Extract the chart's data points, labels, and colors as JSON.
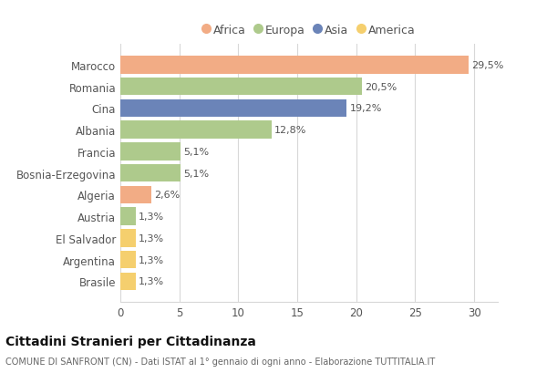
{
  "categories": [
    "Marocco",
    "Romania",
    "Cina",
    "Albania",
    "Francia",
    "Bosnia-Erzegovina",
    "Algeria",
    "Austria",
    "El Salvador",
    "Argentina",
    "Brasile"
  ],
  "values": [
    29.5,
    20.5,
    19.2,
    12.8,
    5.1,
    5.1,
    2.6,
    1.3,
    1.3,
    1.3,
    1.3
  ],
  "labels": [
    "29,5%",
    "20,5%",
    "19,2%",
    "12,8%",
    "5,1%",
    "5,1%",
    "2,6%",
    "1,3%",
    "1,3%",
    "1,3%",
    "1,3%"
  ],
  "continents": [
    "Africa",
    "Europa",
    "Asia",
    "Europa",
    "Europa",
    "Europa",
    "Africa",
    "Europa",
    "America",
    "America",
    "America"
  ],
  "continent_colors": {
    "Africa": "#F2AC85",
    "Europa": "#AECA8C",
    "Asia": "#6B84B8",
    "America": "#F5CF6E"
  },
  "legend_order": [
    "Africa",
    "Europa",
    "Asia",
    "America"
  ],
  "xlim": [
    0,
    32
  ],
  "xticks": [
    0,
    5,
    10,
    15,
    20,
    25,
    30
  ],
  "title": "Cittadini Stranieri per Cittadinanza",
  "subtitle": "COMUNE DI SANFRONT (CN) - Dati ISTAT al 1° gennaio di ogni anno - Elaborazione TUTTITALIA.IT",
  "background_color": "#ffffff",
  "grid_color": "#d8d8d8",
  "bar_height": 0.82,
  "label_fontsize": 8.0,
  "ytick_fontsize": 8.5,
  "xtick_fontsize": 8.5
}
